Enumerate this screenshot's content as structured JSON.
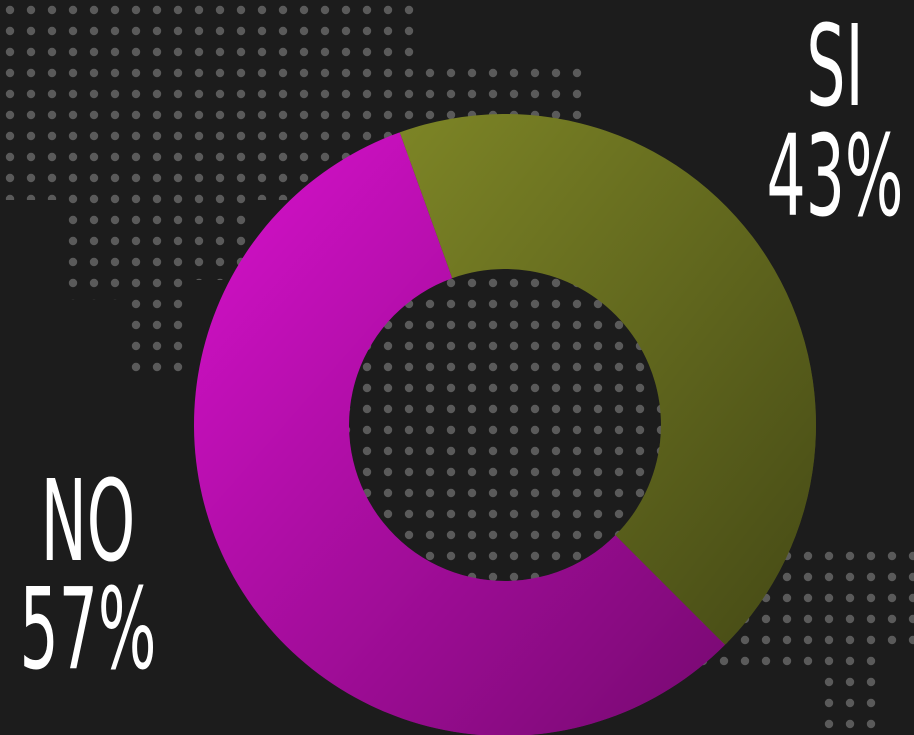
{
  "chart_data": {
    "type": "donut",
    "categories": [
      "SI",
      "NO"
    ],
    "values": [
      43,
      57
    ],
    "value_labels": [
      "43%",
      "57%"
    ],
    "colors": [
      "#7d8526",
      "#d711cc"
    ]
  }
}
